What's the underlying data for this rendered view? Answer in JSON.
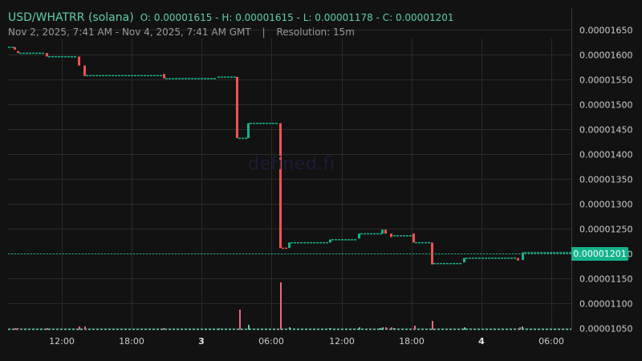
{
  "header": {
    "pair": "USD/WHATRR (solana)",
    "ohlc": "O: 0.00001615 - H: 0.00001615 - L: 0.00001178 - C: 0.00001201",
    "range": "Nov 2, 2025, 7:41 AM - Nov 4, 2025, 7:41 AM GMT",
    "separator": "|",
    "resolution": "Resolution: 15m"
  },
  "watermark": "defined.fi",
  "current_price_label": "0.00001201",
  "colors": {
    "background": "#121212",
    "grid": "#2c2c2c",
    "up": "#15b38b",
    "down": "#ef5350",
    "volume_up": "#5ecfa8",
    "volume_down": "#e8697e",
    "axis_text": "#cccccc",
    "header_text": "#5ecfa8"
  },
  "chart_data": {
    "type": "candlestick",
    "title": "USD/WHATRR (solana)",
    "subtitle": "Nov 2, 2025, 7:41 AM - Nov 4, 2025, 7:41 AM GMT | Resolution: 15m",
    "ohlc_summary": {
      "open": 1.615e-05,
      "high": 1.615e-05,
      "low": 1.178e-05,
      "close": 1.201e-05
    },
    "resolution": "15m",
    "x_tick_labels": [
      "12:00",
      "18:00",
      "3",
      "06:00",
      "12:00",
      "18:00",
      "4",
      "06:00"
    ],
    "y_tick_labels": [
      "0.00001650",
      "0.00001600",
      "0.00001550",
      "0.00001500",
      "0.00001450",
      "0.00001400",
      "0.00001350",
      "0.00001300",
      "0.00001250",
      "0.00001200",
      "0.00001150",
      "0.00001100",
      "0.00001050"
    ],
    "ylim": [
      1.045e-05,
      1.665e-05
    ],
    "current_price": 1.201e-05,
    "grid": true,
    "legend": "none",
    "key_moves": [
      {
        "time": "Nov 2 ~08:00",
        "open": 1.615e-05,
        "close": 1.605e-05
      },
      {
        "time": "Nov 2 ~10:00",
        "open": 1.603e-05,
        "close": 1.596e-05
      },
      {
        "time": "Nov 2 ~13:30",
        "open": 1.595e-05,
        "close": 1.558e-05
      },
      {
        "time": "Nov 2 ~20:30",
        "open": 1.56e-05,
        "close": 1.552e-05
      },
      {
        "time": "Nov 3 ~03:30",
        "open": 1.553e-05,
        "close": 1.432e-05
      },
      {
        "time": "Nov 3 ~04:00",
        "open": 1.432e-05,
        "close": 1.462e-05
      },
      {
        "time": "Nov 3 ~06:45",
        "open": 1.462e-05,
        "close": 1.211e-05
      },
      {
        "time": "Nov 3 ~07:30",
        "open": 1.211e-05,
        "close": 1.222e-05
      },
      {
        "time": "Nov 3 ~12:00",
        "open": 1.226e-05,
        "close": 1.235e-05
      },
      {
        "time": "Nov 3 ~15:30",
        "open": 1.239e-05,
        "close": 1.25e-05
      },
      {
        "time": "Nov 3 ~19:00",
        "open": 1.24e-05,
        "close": 1.222e-05
      },
      {
        "time": "Nov 3 ~20:30",
        "open": 1.222e-05,
        "close": 1.178e-05
      },
      {
        "time": "Nov 4 ~01:00",
        "open": 1.181e-05,
        "close": 1.191e-05
      },
      {
        "time": "Nov 4 ~05:30",
        "open": 1.187e-05,
        "close": 1.202e-05
      },
      {
        "time": "Nov 4 ~07:30",
        "open": 1.202e-05,
        "close": 1.201e-05
      }
    ],
    "volume_spikes": [
      {
        "time": "Nov 3 ~03:30",
        "direction": "down",
        "relative": 0.45
      },
      {
        "time": "Nov 3 ~04:00",
        "direction": "up",
        "relative": 0.1
      },
      {
        "time": "Nov 3 ~06:45",
        "direction": "down",
        "relative": 1.0
      },
      {
        "time": "Nov 3 ~20:30",
        "direction": "down",
        "relative": 0.18
      },
      {
        "time": "Nov 3 ~18:45",
        "direction": "down",
        "relative": 0.1
      }
    ]
  }
}
